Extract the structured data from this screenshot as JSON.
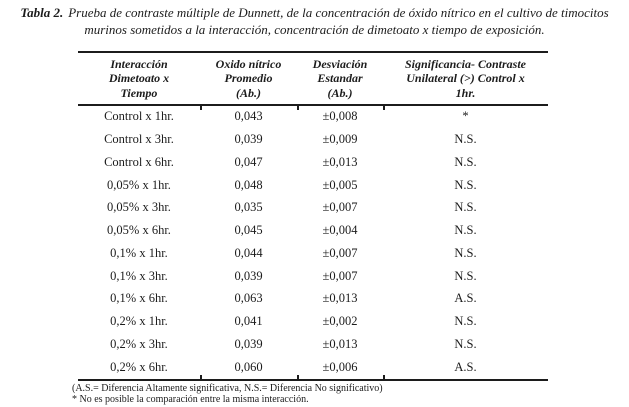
{
  "caption": {
    "label": "Tabla 2.",
    "line1": "Prueba de contraste múltiple de Dunnett, de la concentración de óxido nítrico en el cultivo de timocitos",
    "line2": "murinos sometidos a la interacción, concentración de dimetoato x tiempo de exposición."
  },
  "table": {
    "columns": [
      {
        "id": "interaction",
        "lines": [
          "Interacción",
          "Dimetoato x",
          "Tiempo"
        ]
      },
      {
        "id": "mean",
        "lines": [
          "Oxido nítrico",
          "Promedio",
          "(Ab.)"
        ]
      },
      {
        "id": "sd",
        "lines": [
          "Desviación",
          "Estandar",
          "(Ab.)"
        ]
      },
      {
        "id": "significance",
        "lines": [
          "Significancia- Contraste",
          "Unilateral (>) Control x",
          "1hr."
        ]
      }
    ],
    "rows": [
      {
        "interaction": "Control x 1hr.",
        "mean": "0,043",
        "sd": "±0,008",
        "significance": "*"
      },
      {
        "interaction": "Control x 3hr.",
        "mean": "0,039",
        "sd": "±0,009",
        "significance": "N.S."
      },
      {
        "interaction": "Control x 6hr.",
        "mean": "0,047",
        "sd": "±0,013",
        "significance": "N.S."
      },
      {
        "interaction": "0,05% x 1hr.",
        "mean": "0,048",
        "sd": "±0,005",
        "significance": "N.S."
      },
      {
        "interaction": "0,05% x 3hr.",
        "mean": "0,035",
        "sd": "±0,007",
        "significance": "N.S."
      },
      {
        "interaction": "0,05% x 6hr.",
        "mean": "0,045",
        "sd": "±0,004",
        "significance": "N.S."
      },
      {
        "interaction": "0,1% x 1hr.",
        "mean": "0,044",
        "sd": "±0,007",
        "significance": "N.S."
      },
      {
        "interaction": "0,1% x 3hr.",
        "mean": "0,039",
        "sd": "±0,007",
        "significance": "N.S."
      },
      {
        "interaction": "0,1% x 6hr.",
        "mean": "0,063",
        "sd": "±0,013",
        "significance": "A.S."
      },
      {
        "interaction": "0,2% x 1hr.",
        "mean": "0,041",
        "sd": "±0,002",
        "significance": "N.S."
      },
      {
        "interaction": "0,2% x 3hr.",
        "mean": "0,039",
        "sd": "±0,013",
        "significance": "N.S."
      },
      {
        "interaction": "0,2% x 6hr.",
        "mean": "0,060",
        "sd": "±0,006",
        "significance": "A.S."
      }
    ]
  },
  "footnotes": [
    "(A.S.= Diferencia Altamente significativa, N.S.= Diferencia No significativo)",
    "* No es posible la comparación entre la misma interacción."
  ],
  "colors": {
    "text": "#1c1c1c",
    "background": "#ffffff",
    "rule": "#1c1c1c"
  }
}
